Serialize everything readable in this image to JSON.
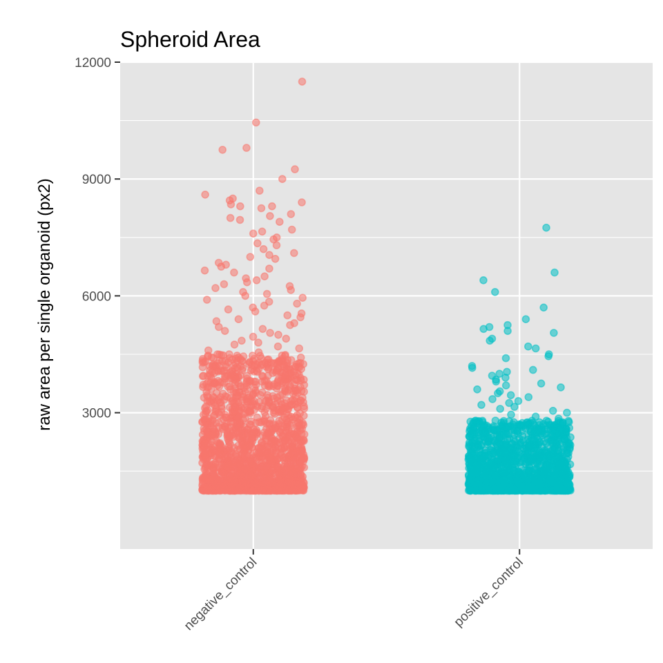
{
  "chart_data": {
    "type": "scatter",
    "subtype": "jitter-strip",
    "title": "Spheroid Area",
    "xlabel": "",
    "ylabel": "raw area per single organoid (px2)",
    "categories": [
      "negative_control",
      "positive_control"
    ],
    "ylim": [
      -500,
      12000
    ],
    "yticks": [
      3000,
      6000,
      9000,
      12000
    ],
    "grid": true,
    "legend": "none",
    "point_alpha": 0.55,
    "series": [
      {
        "category": "negative_control",
        "color": "#F8766D",
        "approx_count": 3500,
        "dense_range": [
          1000,
          4500
        ],
        "values": [
          11500,
          10450,
          9800,
          9750,
          9250,
          9000,
          8700,
          8600,
          8500,
          8450,
          8400,
          8350,
          8300,
          8300,
          8250,
          8100,
          8050,
          8000,
          7950,
          7900,
          7700,
          7650,
          7600,
          7500,
          7450,
          7350,
          7300,
          7200,
          7100,
          7050,
          7000,
          6950,
          6850,
          6800,
          6750,
          6700,
          6650,
          6600,
          6500,
          6450,
          6400,
          6350,
          6300,
          6250,
          6200,
          6150,
          6100,
          6050,
          6000,
          5950,
          5900,
          5850,
          5800,
          5750,
          5700,
          5650,
          5600,
          5550,
          5500,
          5450,
          5400,
          5350,
          5300,
          5250,
          5200,
          5150,
          5100,
          5050,
          5000,
          4950,
          4900,
          4850,
          4800,
          4750,
          4700,
          4650,
          4600,
          4550,
          4500
        ]
      },
      {
        "category": "positive_control",
        "color": "#00BFC4",
        "approx_count": 1600,
        "dense_range": [
          1000,
          2800
        ],
        "values": [
          7750,
          6600,
          6400,
          6100,
          5700,
          5400,
          5250,
          5200,
          5150,
          5100,
          5050,
          4900,
          4850,
          4700,
          4650,
          4500,
          4450,
          4400,
          4200,
          4150,
          4100,
          4050,
          4000,
          3950,
          3900,
          3850,
          3800,
          3750,
          3700,
          3650,
          3600,
          3550,
          3500,
          3450,
          3400,
          3350,
          3300,
          3250,
          3200,
          3150,
          3100,
          3050,
          3000,
          2950,
          2900,
          2850
        ]
      }
    ]
  }
}
